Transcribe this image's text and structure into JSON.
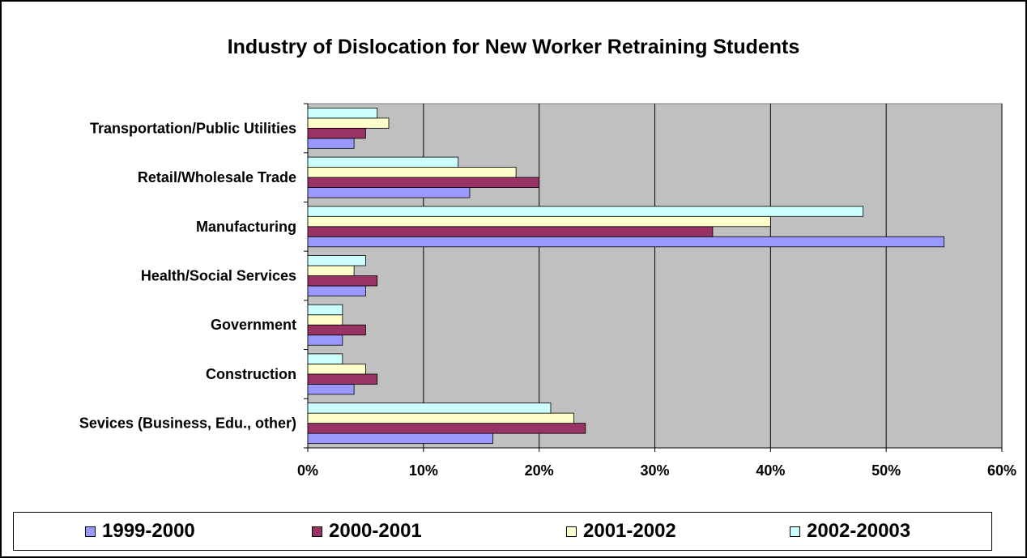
{
  "chart_data": {
    "type": "bar",
    "orientation": "horizontal",
    "title": "Industry of Dislocation for New Worker Retraining Students",
    "xlabel": "",
    "ylabel": "",
    "xlim": [
      0,
      60
    ],
    "ticks": [
      "0%",
      "10%",
      "20%",
      "30%",
      "40%",
      "50%",
      "60%"
    ],
    "tick_values": [
      0,
      10,
      20,
      30,
      40,
      50,
      60
    ],
    "grid": true,
    "legend_position": "bottom",
    "categories": [
      "Transportation/Public Utilities",
      "Retail/Wholesale Trade",
      "Manufacturing",
      "Health/Social Services",
      "Government",
      "Construction",
      "Sevices (Business, Edu., other)"
    ],
    "series": [
      {
        "name": "1999-2000",
        "color": "#9999ff",
        "values": [
          4,
          14,
          55,
          5,
          3,
          4,
          16
        ]
      },
      {
        "name": "2000-2001",
        "color": "#993366",
        "values": [
          5,
          20,
          35,
          6,
          5,
          6,
          24
        ]
      },
      {
        "name": "2001-2002",
        "color": "#ffffcc",
        "values": [
          7,
          18,
          40,
          4,
          3,
          5,
          23
        ]
      },
      {
        "name": "2002-20003",
        "color": "#ccffff",
        "values": [
          6,
          13,
          48,
          5,
          3,
          3,
          21
        ]
      }
    ]
  }
}
